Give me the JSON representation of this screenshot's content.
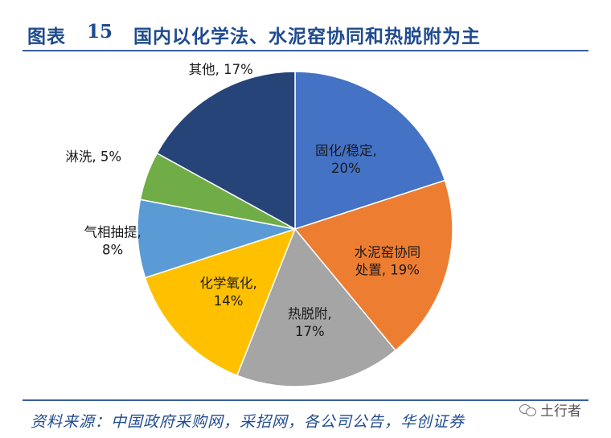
{
  "header": {
    "figure_label": "图表",
    "figure_number": "15",
    "title": "国内以化学法、水泥窑协同和热脱附为主"
  },
  "footer": {
    "source": "资料来源：中国政府采购网，采招网，各公司公告，华创证券",
    "watermark": "土行者",
    "watermark_icon": "wechat-icon"
  },
  "chart_data": {
    "type": "pie",
    "title": "国内以化学法、水泥窑协同和热脱附为主",
    "start": "12 o'clock, clockwise",
    "slices": [
      {
        "label_lines": [
          "固化/稳定,",
          "20%"
        ],
        "name": "固化/稳定",
        "value": 20,
        "color": "#4472c4",
        "text_color": "#1a1a1a"
      },
      {
        "label_lines": [
          "水泥窑协同",
          "处置, 19%"
        ],
        "name": "水泥窑协同处置",
        "value": 19,
        "color": "#ed7d31",
        "text_color": "#1a1a1a"
      },
      {
        "label_lines": [
          "热脱附,",
          "17%"
        ],
        "name": "热脱附",
        "value": 17,
        "color": "#a5a5a5",
        "text_color": "#1a1a1a"
      },
      {
        "label_lines": [
          "化学氧化,",
          "14%"
        ],
        "name": "化学氧化",
        "value": 14,
        "color": "#ffc000",
        "text_color": "#1a1a1a"
      },
      {
        "label_lines": [
          "气相抽提,",
          "8%"
        ],
        "name": "气相抽提",
        "value": 8,
        "color": "#5b9bd5",
        "text_color": "#1a1a1a"
      },
      {
        "label_lines": [
          "淋洗, 5%"
        ],
        "name": "淋洗",
        "value": 5,
        "color": "#70ad47",
        "text_color": "#1a1a1a"
      },
      {
        "label_lines": [
          "其他, 17%"
        ],
        "name": "其他",
        "value": 17,
        "color": "#264478",
        "text_color": "#1a1a1a"
      }
    ]
  }
}
